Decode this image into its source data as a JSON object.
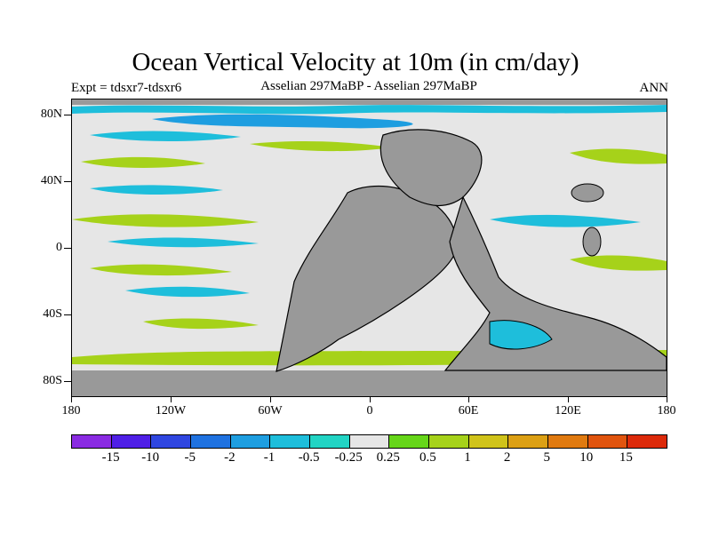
{
  "title": "Ocean Vertical Velocity at 10m (in cm/day)",
  "subtitle_left": "Expt = tdsxr7-tdsxr6",
  "subtitle_center": "Asselian 297MaBP - Asselian 297MaBP",
  "subtitle_right": "ANN",
  "map": {
    "land_color": "#999999",
    "neutral_color": "#e6e6e6",
    "y_labels": [
      "80N",
      "40N",
      "0",
      "40S",
      "80S"
    ],
    "x_labels": [
      "180",
      "120W",
      "60W",
      "0",
      "60E",
      "120E",
      "180"
    ]
  },
  "colorbar": {
    "colors": [
      "#8a2be2",
      "#4f1fe6",
      "#2f46e0",
      "#1f72e0",
      "#1e9ee0",
      "#1ebedb",
      "#22d4c4",
      "#e6e6e6",
      "#66d619",
      "#a6d21a",
      "#d0c31a",
      "#dca014",
      "#e07a10",
      "#e0540e",
      "#dc2a0a"
    ],
    "labels": [
      "-15",
      "-10",
      "-5",
      "-2",
      "-1",
      "-0.5",
      "-0.25",
      "0.25",
      "0.5",
      "1",
      "2",
      "5",
      "10",
      "15"
    ]
  }
}
